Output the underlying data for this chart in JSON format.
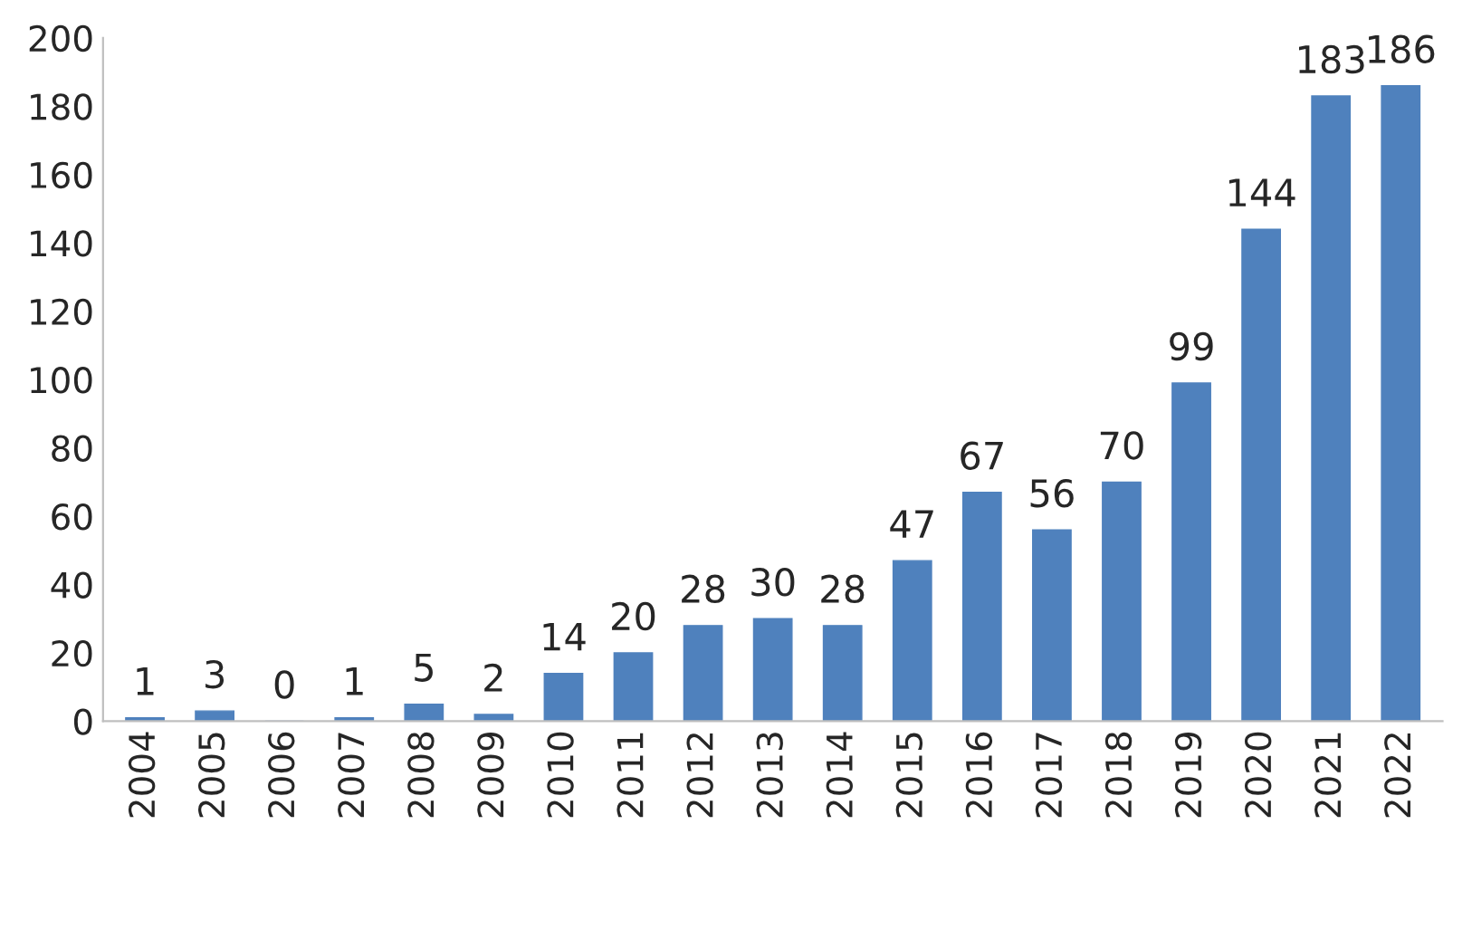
{
  "chart_data": {
    "type": "bar",
    "categories": [
      "2004",
      "2005",
      "2006",
      "2007",
      "2008",
      "2009",
      "2010",
      "2011",
      "2012",
      "2013",
      "2014",
      "2015",
      "2016",
      "2017",
      "2018",
      "2019",
      "2020",
      "2021",
      "2022"
    ],
    "values": [
      1,
      3,
      0,
      1,
      5,
      2,
      14,
      20,
      28,
      30,
      28,
      47,
      67,
      56,
      70,
      99,
      144,
      183,
      186
    ],
    "color": "#4f81bd",
    "ylim": [
      0,
      200
    ],
    "yticks": [
      0,
      20,
      40,
      60,
      80,
      100,
      120,
      140,
      160,
      180,
      200
    ],
    "data_labels": true,
    "grid": false
  }
}
